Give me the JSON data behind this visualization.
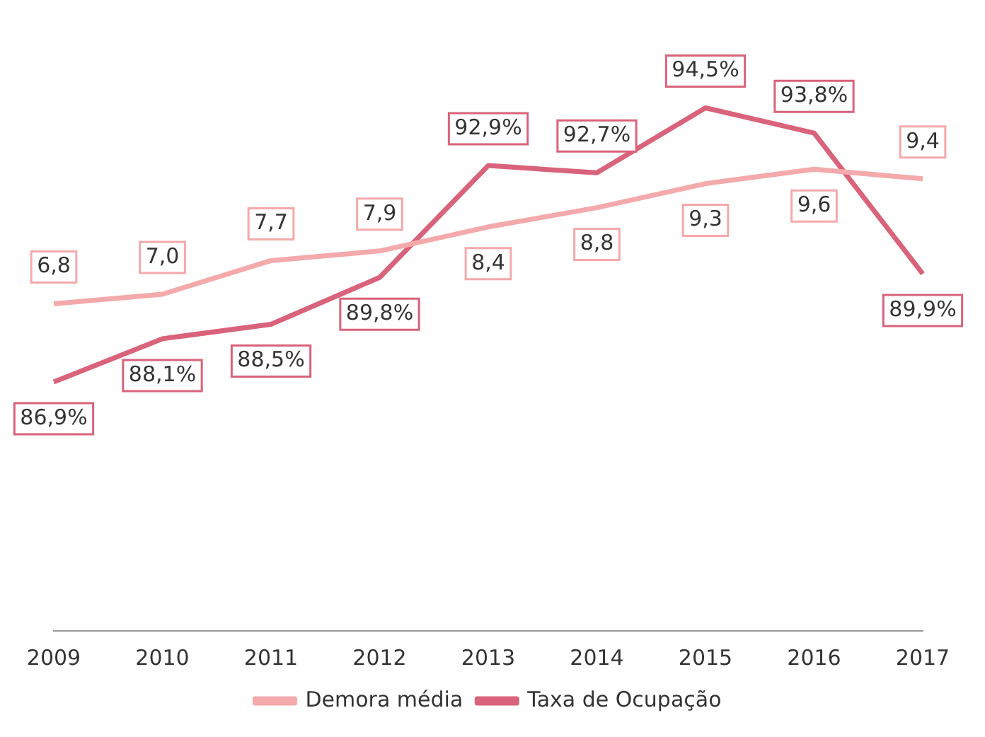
{
  "chart_data": {
    "type": "line",
    "categories": [
      "2009",
      "2010",
      "2011",
      "2012",
      "2013",
      "2014",
      "2015",
      "2016",
      "2017"
    ],
    "series": [
      {
        "name": "Demora média",
        "color": "#f4a9ab",
        "values": [
          6.8,
          7.0,
          7.7,
          7.9,
          8.4,
          8.8,
          9.3,
          9.6,
          9.4
        ],
        "value_labels": [
          "6,8",
          "7,0",
          "7,7",
          "7,9",
          "8,4",
          "8,8",
          "9,3",
          "9,6",
          "9,4"
        ]
      },
      {
        "name": "Taxa de Ocupação",
        "color": "#d9637a",
        "axis": "y2",
        "values": [
          86.9,
          88.1,
          88.5,
          89.8,
          92.9,
          92.7,
          94.5,
          93.8,
          89.9
        ],
        "value_labels": [
          "86,9%",
          "88,1%",
          "88,5%",
          "89,8%",
          "92,9%",
          "92,7%",
          "94,5%",
          "93,8%",
          "89,9%"
        ]
      }
    ],
    "tick_labels": "x",
    "grid": false,
    "legend": "bottom",
    "marker": "none",
    "line_style": "solid"
  }
}
